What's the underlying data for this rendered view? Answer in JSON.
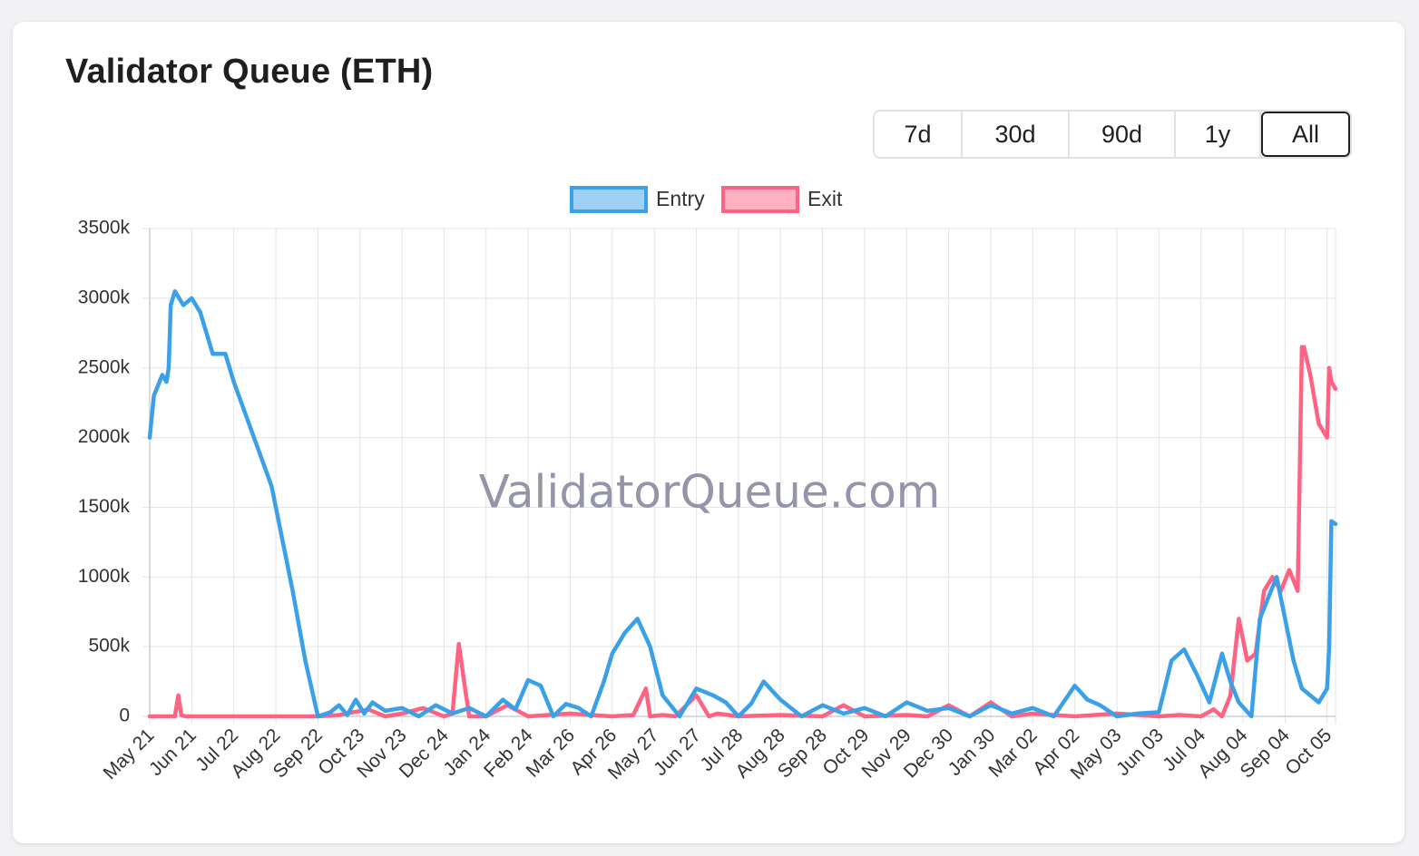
{
  "card": {
    "title": "Validator Queue (ETH)"
  },
  "range_buttons": [
    {
      "label": "7d",
      "active": false
    },
    {
      "label": "30d",
      "active": false
    },
    {
      "label": "90d",
      "active": false
    },
    {
      "label": "1y",
      "active": false
    },
    {
      "label": "All",
      "active": true
    }
  ],
  "watermark": "ValidatorQueue.com",
  "colors": {
    "entry": "#3aa1e8",
    "entry_fill": "#9fd0f5",
    "exit": "#ff6384",
    "exit_fill": "#ffb1c1",
    "grid": "#e3e3e3"
  },
  "chart_data": {
    "type": "line",
    "title": "Validator Queue (ETH)",
    "xlabel": "",
    "ylabel": "",
    "ylim": [
      0,
      3500000
    ],
    "yticks": [
      0,
      500000,
      1000000,
      1500000,
      2000000,
      2500000,
      3000000,
      3500000
    ],
    "ytick_labels": [
      "0",
      "500k",
      "1000k",
      "1500k",
      "2000k",
      "2500k",
      "3000k",
      "3500k"
    ],
    "x_categories": [
      "May 21",
      "Jun 21",
      "Jul 22",
      "Aug 22",
      "Sep 22",
      "Oct 23",
      "Nov 23",
      "Dec 24",
      "Jan 24",
      "Feb 24",
      "Mar 26",
      "Apr 26",
      "May 27",
      "Jun 27",
      "Jul 28",
      "Aug 28",
      "Sep 28",
      "Oct 29",
      "Nov 29",
      "Dec 30",
      "Jan 30",
      "Mar 02",
      "Apr 02",
      "May 03",
      "Jun 03",
      "Jul 04",
      "Aug 04",
      "Sep 04",
      "Oct 05"
    ],
    "xlim": [
      0,
      28.2
    ],
    "grid": true,
    "legend": "top-center",
    "series": [
      {
        "name": "Entry",
        "x": [
          0,
          0.1,
          0.3,
          0.4,
          0.45,
          0.5,
          0.6,
          0.8,
          1.0,
          1.2,
          1.5,
          1.8,
          2.0,
          2.3,
          2.6,
          2.9,
          3.2,
          3.4,
          3.7,
          4.0,
          4.3,
          4.5,
          4.7,
          4.9,
          5.1,
          5.3,
          5.6,
          6.0,
          6.4,
          6.8,
          7.2,
          7.6,
          8.0,
          8.4,
          8.7,
          9.0,
          9.3,
          9.6,
          9.9,
          10.2,
          10.5,
          10.8,
          11.0,
          11.3,
          11.6,
          11.9,
          12.2,
          12.6,
          13.0,
          13.4,
          13.7,
          14.0,
          14.3,
          14.6,
          15.0,
          15.5,
          16.0,
          16.5,
          17.0,
          17.5,
          18.0,
          18.5,
          19.0,
          19.5,
          20.0,
          20.5,
          21.0,
          21.5,
          22.0,
          22.3,
          22.6,
          23.0,
          23.5,
          24.0,
          24.3,
          24.6,
          24.9,
          25.2,
          25.5,
          25.7,
          25.9,
          26.2,
          26.4,
          26.6,
          26.8,
          27.0,
          27.2,
          27.4,
          27.6,
          27.8,
          28.0,
          28.05,
          28.1,
          28.2
        ],
        "values": [
          2000000,
          2300000,
          2450000,
          2400000,
          2500000,
          2950000,
          3050000,
          2950000,
          3000000,
          2900000,
          2600000,
          2600000,
          2400000,
          2150000,
          1900000,
          1650000,
          1200000,
          900000,
          400000,
          0,
          30000,
          80000,
          10000,
          120000,
          20000,
          100000,
          40000,
          60000,
          0,
          80000,
          20000,
          60000,
          0,
          120000,
          50000,
          260000,
          220000,
          0,
          90000,
          60000,
          0,
          250000,
          450000,
          600000,
          700000,
          500000,
          150000,
          0,
          200000,
          150000,
          100000,
          0,
          90000,
          250000,
          120000,
          0,
          80000,
          20000,
          60000,
          0,
          100000,
          40000,
          60000,
          0,
          80000,
          20000,
          60000,
          0,
          220000,
          120000,
          80000,
          0,
          20000,
          30000,
          400000,
          480000,
          300000,
          100000,
          450000,
          250000,
          100000,
          0,
          700000,
          850000,
          1000000,
          700000,
          400000,
          200000,
          150000,
          100000,
          200000,
          500000,
          1400000,
          1380000
        ]
      },
      {
        "name": "Exit",
        "x": [
          0,
          0.6,
          0.68,
          0.75,
          0.85,
          1.5,
          3.0,
          4.0,
          4.5,
          5.2,
          5.6,
          6.0,
          6.5,
          7.0,
          7.2,
          7.35,
          7.5,
          7.6,
          8.0,
          8.5,
          9.0,
          10.0,
          11.0,
          11.5,
          11.8,
          11.9,
          12.2,
          12.5,
          13.0,
          13.3,
          13.5,
          14.0,
          15.0,
          16.0,
          16.5,
          17.0,
          18.0,
          18.5,
          19.0,
          19.5,
          20.0,
          20.5,
          21.0,
          22.0,
          23.0,
          24.0,
          24.5,
          25.0,
          25.3,
          25.5,
          25.7,
          25.9,
          26.1,
          26.3,
          26.5,
          26.7,
          26.9,
          27.1,
          27.3,
          27.4,
          27.45,
          27.6,
          27.8,
          28.0,
          28.05,
          28.1,
          28.2
        ],
        "values": [
          0,
          0,
          150000,
          10000,
          0,
          0,
          0,
          0,
          10000,
          50000,
          0,
          20000,
          60000,
          0,
          20000,
          520000,
          200000,
          0,
          0,
          80000,
          0,
          20000,
          0,
          10000,
          200000,
          0,
          10000,
          0,
          150000,
          0,
          20000,
          0,
          10000,
          0,
          80000,
          0,
          10000,
          0,
          80000,
          0,
          100000,
          0,
          20000,
          0,
          20000,
          0,
          10000,
          0,
          50000,
          0,
          150000,
          700000,
          400000,
          450000,
          900000,
          1000000,
          900000,
          1050000,
          900000,
          2650000,
          2650000,
          2450000,
          2100000,
          2000000,
          2500000,
          2400000,
          2350000
        ]
      }
    ]
  }
}
